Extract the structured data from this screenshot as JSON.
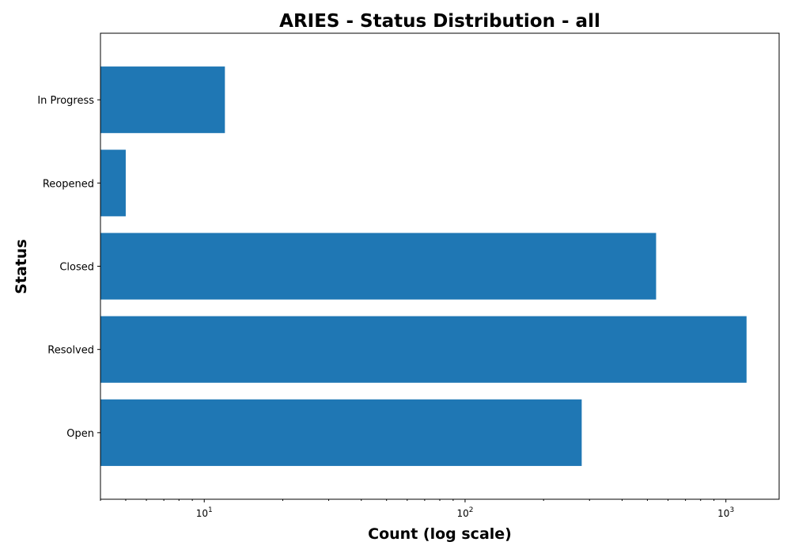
{
  "chart_data": {
    "type": "bar",
    "orientation": "horizontal",
    "title": "ARIES - Status Distribution - all",
    "xlabel": "Count (log scale)",
    "ylabel": "Status",
    "xscale": "log",
    "xlim": [
      4,
      1600
    ],
    "xticks": [
      {
        "value": 10,
        "base": "10",
        "exp": "1"
      },
      {
        "value": 100,
        "base": "10",
        "exp": "2"
      },
      {
        "value": 1000,
        "base": "10",
        "exp": "3"
      }
    ],
    "categories": [
      "Open",
      "Resolved",
      "Closed",
      "Reopened",
      "In Progress"
    ],
    "values": [
      280,
      1200,
      540,
      5,
      12
    ],
    "bar_color": "#1f77b4",
    "grid": false,
    "legend": "none"
  }
}
